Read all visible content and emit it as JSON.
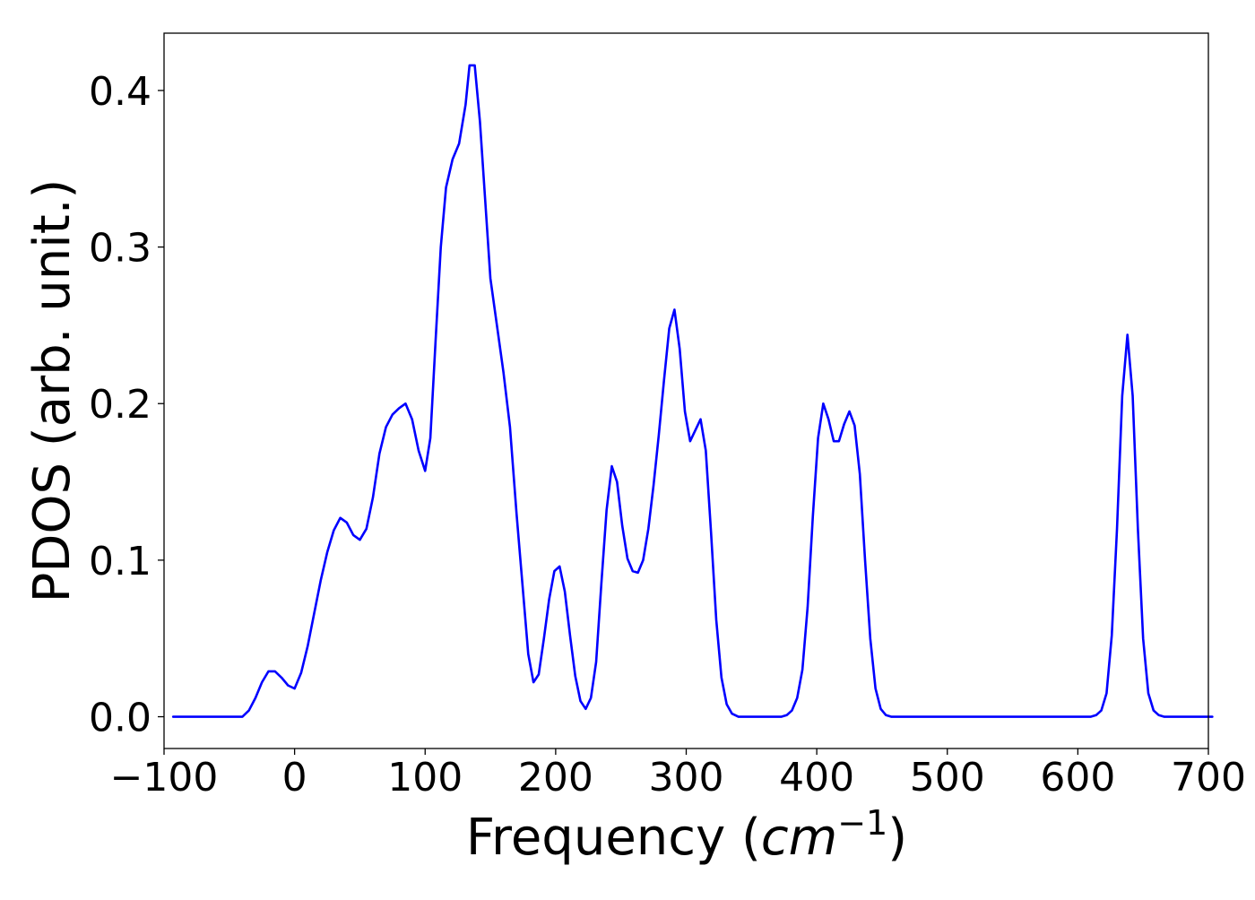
{
  "chart_data": {
    "type": "line",
    "title": "",
    "xlabel_text": "Frequency (",
    "xlabel_math": "cm",
    "xlabel_exp": "−1",
    "xlabel_close": ")",
    "ylabel": "PDOS (arb. unit.)",
    "xlim": [
      -100,
      700
    ],
    "ylim": [
      -0.0203,
      0.4366
    ],
    "xticks": [
      -100,
      0,
      100,
      200,
      300,
      400,
      500,
      600,
      700
    ],
    "xtick_labels": [
      "−100",
      "0",
      "100",
      "200",
      "300",
      "400",
      "500",
      "600",
      "700"
    ],
    "yticks": [
      0.0,
      0.1,
      0.2,
      0.3,
      0.4
    ],
    "ytick_labels": [
      "0.0",
      "0.1",
      "0.2",
      "0.3",
      "0.4"
    ],
    "grid": false,
    "series": [
      {
        "color": "#0000ff",
        "points": [
          [
            -93,
            0.0
          ],
          [
            -40,
            0.0
          ],
          [
            -35,
            0.004
          ],
          [
            -30,
            0.012
          ],
          [
            -25,
            0.022
          ],
          [
            -20,
            0.029
          ],
          [
            -15,
            0.029
          ],
          [
            -10,
            0.025
          ],
          [
            -5,
            0.02
          ],
          [
            0,
            0.018
          ],
          [
            5,
            0.028
          ],
          [
            10,
            0.045
          ],
          [
            15,
            0.066
          ],
          [
            20,
            0.087
          ],
          [
            25,
            0.105
          ],
          [
            30,
            0.119
          ],
          [
            35,
            0.127
          ],
          [
            40,
            0.124
          ],
          [
            45,
            0.116
          ],
          [
            50,
            0.113
          ],
          [
            55,
            0.12
          ],
          [
            60,
            0.14
          ],
          [
            65,
            0.168
          ],
          [
            70,
            0.185
          ],
          [
            75,
            0.193
          ],
          [
            80,
            0.197
          ],
          [
            85,
            0.2
          ],
          [
            90,
            0.19
          ],
          [
            95,
            0.17
          ],
          [
            100,
            0.157
          ],
          [
            104,
            0.178
          ],
          [
            108,
            0.24
          ],
          [
            112,
            0.3
          ],
          [
            116,
            0.338
          ],
          [
            121,
            0.356
          ],
          [
            126,
            0.366
          ],
          [
            131,
            0.391
          ],
          [
            134,
            0.416
          ],
          [
            138,
            0.416
          ],
          [
            142,
            0.38
          ],
          [
            146,
            0.33
          ],
          [
            150,
            0.28
          ],
          [
            155,
            0.25
          ],
          [
            160,
            0.22
          ],
          [
            165,
            0.185
          ],
          [
            170,
            0.13
          ],
          [
            175,
            0.08
          ],
          [
            179,
            0.04
          ],
          [
            183,
            0.022
          ],
          [
            187,
            0.027
          ],
          [
            191,
            0.05
          ],
          [
            195,
            0.075
          ],
          [
            199,
            0.093
          ],
          [
            203,
            0.096
          ],
          [
            207,
            0.08
          ],
          [
            211,
            0.052
          ],
          [
            215,
            0.026
          ],
          [
            219,
            0.01
          ],
          [
            223,
            0.005
          ],
          [
            227,
            0.012
          ],
          [
            231,
            0.035
          ],
          [
            235,
            0.085
          ],
          [
            239,
            0.132
          ],
          [
            243,
            0.16
          ],
          [
            247,
            0.15
          ],
          [
            251,
            0.122
          ],
          [
            255,
            0.101
          ],
          [
            259,
            0.093
          ],
          [
            263,
            0.092
          ],
          [
            267,
            0.1
          ],
          [
            271,
            0.12
          ],
          [
            275,
            0.148
          ],
          [
            279,
            0.18
          ],
          [
            283,
            0.215
          ],
          [
            287,
            0.248
          ],
          [
            291,
            0.26
          ],
          [
            295,
            0.235
          ],
          [
            299,
            0.195
          ],
          [
            303,
            0.176
          ],
          [
            307,
            0.183
          ],
          [
            311,
            0.19
          ],
          [
            315,
            0.17
          ],
          [
            319,
            0.118
          ],
          [
            323,
            0.062
          ],
          [
            327,
            0.025
          ],
          [
            331,
            0.008
          ],
          [
            335,
            0.002
          ],
          [
            340,
            0.0
          ],
          [
            373,
            0.0
          ],
          [
            377,
            0.001
          ],
          [
            381,
            0.004
          ],
          [
            385,
            0.012
          ],
          [
            389,
            0.03
          ],
          [
            393,
            0.07
          ],
          [
            397,
            0.128
          ],
          [
            401,
            0.178
          ],
          [
            405,
            0.2
          ],
          [
            409,
            0.19
          ],
          [
            413,
            0.176
          ],
          [
            417,
            0.176
          ],
          [
            421,
            0.187
          ],
          [
            425,
            0.195
          ],
          [
            429,
            0.186
          ],
          [
            433,
            0.155
          ],
          [
            437,
            0.1
          ],
          [
            441,
            0.05
          ],
          [
            445,
            0.018
          ],
          [
            449,
            0.005
          ],
          [
            453,
            0.001
          ],
          [
            457,
            0.0
          ],
          [
            610,
            0.0
          ],
          [
            614,
            0.001
          ],
          [
            618,
            0.004
          ],
          [
            622,
            0.015
          ],
          [
            626,
            0.052
          ],
          [
            630,
            0.12
          ],
          [
            634,
            0.205
          ],
          [
            638,
            0.244
          ],
          [
            642,
            0.205
          ],
          [
            646,
            0.12
          ],
          [
            650,
            0.05
          ],
          [
            654,
            0.015
          ],
          [
            658,
            0.004
          ],
          [
            662,
            0.001
          ],
          [
            666,
            0.0
          ],
          [
            703,
            0.0
          ]
        ]
      }
    ]
  }
}
